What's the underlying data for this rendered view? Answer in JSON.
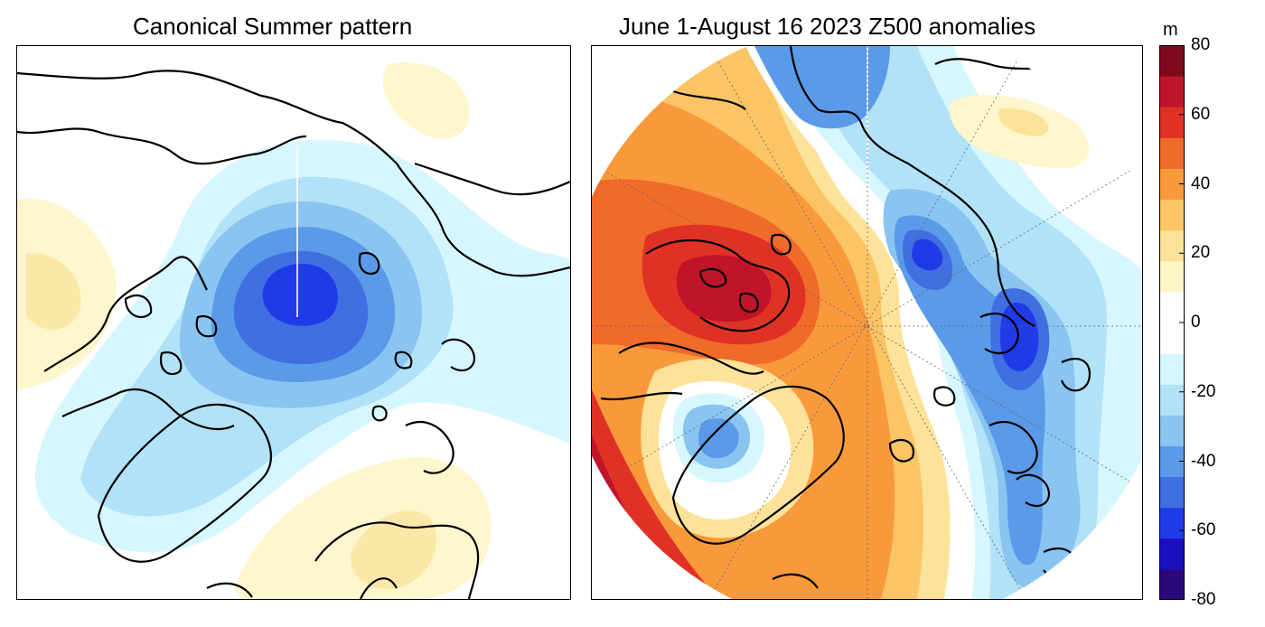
{
  "panels": {
    "left": {
      "title": "Canonical Summer pattern"
    },
    "right": {
      "title": "June 1-August 16 2023 Z500 anomalies"
    }
  },
  "colorbar": {
    "unit": "m",
    "ticks": [
      "80",
      "60",
      "40",
      "20",
      "0",
      "-20",
      "-40",
      "-60",
      "-80"
    ],
    "tick_values": [
      80,
      60,
      40,
      20,
      0,
      -20,
      -40,
      -60,
      -80
    ],
    "range": [
      -80,
      80
    ],
    "interval": 10,
    "colors_low_to_high": [
      "#2a0a7a",
      "#1a0fbf",
      "#1f3be8",
      "#3f6fe0",
      "#5b9ae8",
      "#8ac4f0",
      "#b2e2f8",
      "#d6f7fd",
      "#ffffff",
      "#ffffff",
      "#fff6c8",
      "#fde39a",
      "#fbc464",
      "#f89a3c",
      "#f06a2a",
      "#e03224",
      "#c0142a",
      "#7f0a1e"
    ]
  }
}
